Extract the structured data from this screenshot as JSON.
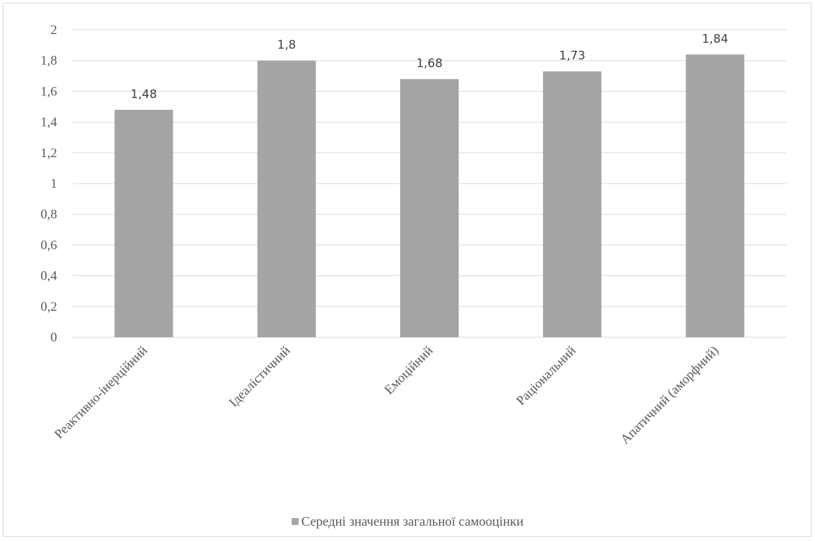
{
  "chart_data": {
    "type": "bar",
    "categories": [
      "Реактивно-інерційний",
      "Ідеалістичний",
      "Емоційний",
      "Раціональний",
      "Апатичний (аморфний)"
    ],
    "series": [
      {
        "name": "Середні значення загальної самооцінки",
        "values": [
          1.48,
          1.8,
          1.68,
          1.73,
          1.84
        ],
        "labels": [
          "1,48",
          "1,8",
          "1,68",
          "1,73",
          "1,84"
        ],
        "color": "#a5a5a5"
      }
    ],
    "yticks": [
      0,
      0.2,
      0.4,
      0.6,
      0.8,
      1,
      1.2,
      1.4,
      1.6,
      1.8,
      2
    ],
    "ytick_labels": [
      "0",
      "0,2",
      "0,4",
      "0,6",
      "0,8",
      "1",
      "1,2",
      "1,4",
      "1,6",
      "1,8",
      "2"
    ],
    "ylim": [
      0,
      2
    ],
    "grid": true,
    "gridColor": "#d9d9d9",
    "legend_position": "bottom",
    "xlabel": "",
    "ylabel": "",
    "title": ""
  }
}
